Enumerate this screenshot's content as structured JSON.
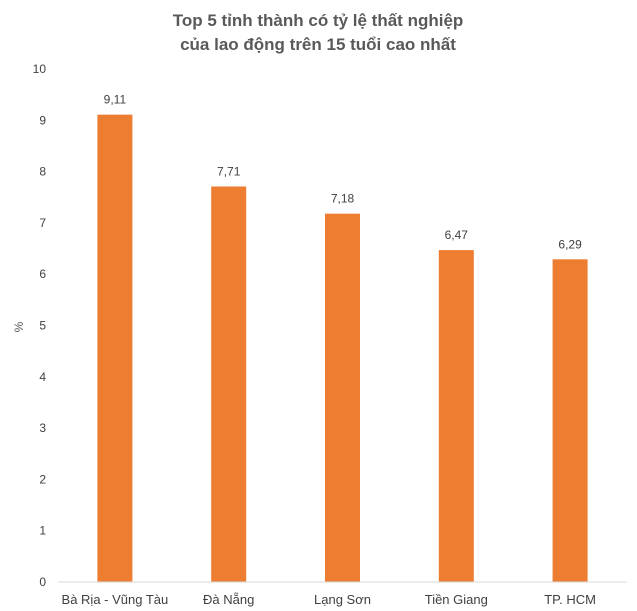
{
  "chart_data": {
    "type": "bar",
    "title_lines": [
      "Top 5 tỉnh thành có tỷ lệ thất nghiệp",
      "của lao động trên 15 tuổi cao nhất"
    ],
    "xlabel": "",
    "ylabel": "%",
    "categories": [
      "Bà Rịa - Vũng Tàu",
      "Đà Nẵng",
      "Lạng Sơn",
      "Tiền Giang",
      "TP. HCM"
    ],
    "values": [
      9.11,
      7.71,
      7.18,
      6.47,
      6.29
    ],
    "value_labels": [
      "9,11",
      "7,71",
      "7,18",
      "6,47",
      "6,29"
    ],
    "ylim": [
      0,
      10
    ],
    "yticks": [
      "0",
      "1",
      "2",
      "3",
      "4",
      "5",
      "6",
      "7",
      "8",
      "9",
      "10"
    ],
    "grid": false,
    "legend": "none",
    "bar_color": "#ED7D31",
    "axis_color": "#D9D9D9"
  }
}
